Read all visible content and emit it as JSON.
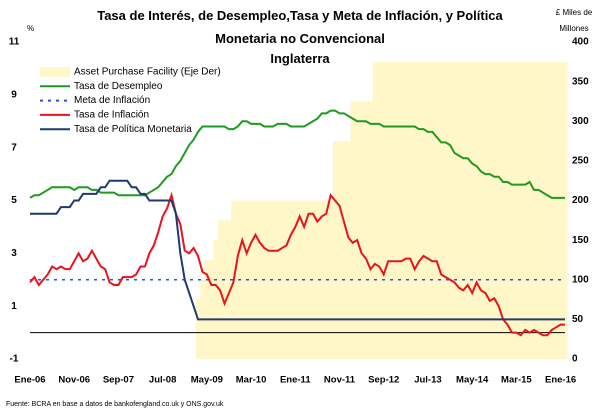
{
  "chart_data": {
    "type": "line",
    "title": "Tasa de Interés, de Desempleo,Tasa y Meta de Inflación, y Política Monetaria no Convencional",
    "subtitle": "Inglaterra",
    "ylabel": "%",
    "y2label": "£ Miles de Millones",
    "source": "Fuente: BCRA en base a datos de bankofengland.co.uk y ONS.gov.uk",
    "ylim": [
      -1,
      11
    ],
    "yticks": [
      -1,
      1,
      3,
      5,
      7,
      9,
      11
    ],
    "y2lim": [
      0,
      400
    ],
    "y2ticks": [
      0,
      50,
      100,
      150,
      200,
      250,
      300,
      350,
      400
    ],
    "categories": [
      "Ene-06",
      null,
      null,
      null,
      null,
      null,
      null,
      null,
      null,
      null,
      "Nov-06",
      null,
      null,
      null,
      null,
      null,
      null,
      null,
      null,
      null,
      "Sep-07",
      null,
      null,
      null,
      null,
      null,
      null,
      null,
      null,
      null,
      "Jul-08",
      null,
      null,
      null,
      null,
      null,
      null,
      null,
      null,
      null,
      "May-09",
      null,
      null,
      null,
      null,
      null,
      null,
      null,
      null,
      null,
      "Mar-10",
      null,
      null,
      null,
      null,
      null,
      null,
      null,
      null,
      null,
      "Ene-11",
      null,
      null,
      null,
      null,
      null,
      null,
      null,
      null,
      null,
      "Nov-11",
      null,
      null,
      null,
      null,
      null,
      null,
      null,
      null,
      null,
      "Sep-12",
      null,
      null,
      null,
      null,
      null,
      null,
      null,
      null,
      null,
      "Jul-13",
      null,
      null,
      null,
      null,
      null,
      null,
      null,
      null,
      null,
      "May-14",
      null,
      null,
      null,
      null,
      null,
      null,
      null,
      null,
      null,
      "Mar-15",
      null,
      null,
      null,
      null,
      null,
      null,
      null,
      null,
      null,
      "Ene-16",
      null
    ],
    "series": [
      {
        "name": "Asset Purchase Facility (Eje Der)",
        "type": "area",
        "axis": "y2",
        "color": "#fff7c8",
        "values": [
          0,
          0,
          0,
          0,
          0,
          0,
          0,
          0,
          0,
          0,
          0,
          0,
          0,
          0,
          0,
          0,
          0,
          0,
          0,
          0,
          0,
          0,
          0,
          0,
          0,
          0,
          0,
          0,
          0,
          0,
          0,
          0,
          0,
          0,
          0,
          0,
          0,
          0,
          75,
          100,
          125,
          125,
          150,
          175,
          175,
          175,
          200,
          200,
          200,
          200,
          200,
          200,
          200,
          200,
          200,
          200,
          200,
          200,
          200,
          200,
          200,
          200,
          200,
          200,
          200,
          200,
          200,
          200,
          200,
          275,
          275,
          275,
          275,
          325,
          325,
          325,
          325,
          325,
          375,
          375,
          375,
          375,
          375,
          375,
          375,
          375,
          375,
          375,
          375,
          375,
          375,
          375,
          375,
          375,
          375,
          375,
          375,
          375,
          375,
          375,
          375,
          375,
          375,
          375,
          375,
          375,
          375,
          375,
          375,
          375,
          375,
          375,
          375,
          375,
          375,
          375,
          375,
          375,
          375,
          375,
          375,
          375
        ]
      },
      {
        "name": "Tasa de Desempleo",
        "color": "#1e9a1e",
        "values": [
          5.1,
          5.2,
          5.2,
          5.3,
          5.4,
          5.5,
          5.5,
          5.5,
          5.5,
          5.5,
          5.4,
          5.5,
          5.5,
          5.5,
          5.4,
          5.4,
          5.3,
          5.3,
          5.3,
          5.3,
          5.2,
          5.2,
          5.2,
          5.2,
          5.2,
          5.2,
          5.2,
          5.3,
          5.4,
          5.5,
          5.7,
          5.9,
          6.0,
          6.3,
          6.5,
          6.8,
          7.1,
          7.3,
          7.6,
          7.8,
          7.8,
          7.8,
          7.8,
          7.8,
          7.8,
          7.7,
          7.7,
          7.8,
          8.0,
          8.0,
          7.9,
          7.9,
          7.9,
          7.8,
          7.8,
          7.8,
          7.9,
          7.9,
          7.9,
          7.8,
          7.8,
          7.8,
          7.8,
          7.9,
          8.0,
          8.1,
          8.3,
          8.3,
          8.4,
          8.4,
          8.3,
          8.3,
          8.2,
          8.1,
          8.0,
          8.0,
          8.0,
          7.9,
          7.9,
          7.9,
          7.8,
          7.8,
          7.8,
          7.8,
          7.8,
          7.8,
          7.8,
          7.8,
          7.7,
          7.7,
          7.6,
          7.6,
          7.4,
          7.2,
          7.2,
          7.1,
          6.8,
          6.7,
          6.6,
          6.6,
          6.4,
          6.3,
          6.1,
          6.0,
          6.0,
          5.9,
          5.9,
          5.7,
          5.7,
          5.6,
          5.6,
          5.6,
          5.6,
          5.7,
          5.4,
          5.4,
          5.3,
          5.2,
          5.1,
          5.1,
          5.1,
          5.1
        ]
      },
      {
        "name": "Meta de Inflación",
        "style": "dashed",
        "color": "#3050d8",
        "values": [
          2,
          2,
          2,
          2,
          2,
          2,
          2,
          2,
          2,
          2,
          2,
          2,
          2,
          2,
          2,
          2,
          2,
          2,
          2,
          2,
          2,
          2,
          2,
          2,
          2,
          2,
          2,
          2,
          2,
          2,
          2,
          2,
          2,
          2,
          2,
          2,
          2,
          2,
          2,
          2,
          2,
          2,
          2,
          2,
          2,
          2,
          2,
          2,
          2,
          2,
          2,
          2,
          2,
          2,
          2,
          2,
          2,
          2,
          2,
          2,
          2,
          2,
          2,
          2,
          2,
          2,
          2,
          2,
          2,
          2,
          2,
          2,
          2,
          2,
          2,
          2,
          2,
          2,
          2,
          2,
          2,
          2,
          2,
          2,
          2,
          2,
          2,
          2,
          2,
          2,
          2,
          2,
          2,
          2,
          2,
          2,
          2,
          2,
          2,
          2,
          2,
          2,
          2,
          2,
          2,
          2,
          2,
          2,
          2,
          2,
          2,
          2,
          2,
          2,
          2,
          2,
          2,
          2,
          2,
          2,
          2,
          2
        ]
      },
      {
        "name": "Tasa de Inflación",
        "color": "#e8141c",
        "values": [
          1.9,
          2.1,
          1.8,
          2.0,
          2.2,
          2.5,
          2.4,
          2.5,
          2.4,
          2.4,
          2.7,
          3.0,
          2.7,
          2.8,
          3.1,
          2.8,
          2.5,
          2.4,
          1.9,
          1.8,
          1.8,
          2.1,
          2.1,
          2.1,
          2.2,
          2.5,
          2.5,
          3.0,
          3.3,
          3.8,
          4.4,
          4.7,
          5.2,
          4.5,
          4.1,
          3.1,
          3.0,
          3.2,
          2.9,
          2.3,
          2.2,
          1.8,
          1.8,
          1.6,
          1.1,
          1.5,
          1.9,
          2.9,
          3.5,
          3.0,
          3.4,
          3.7,
          3.4,
          3.2,
          3.1,
          3.1,
          3.1,
          3.2,
          3.3,
          3.7,
          4.0,
          4.4,
          4.0,
          4.5,
          4.5,
          4.2,
          4.4,
          4.5,
          5.2,
          5.0,
          4.8,
          4.2,
          3.6,
          3.4,
          3.5,
          3.0,
          2.8,
          2.4,
          2.6,
          2.5,
          2.2,
          2.7,
          2.7,
          2.7,
          2.7,
          2.8,
          2.8,
          2.4,
          2.7,
          2.9,
          2.8,
          2.7,
          2.7,
          2.2,
          2.1,
          2.0,
          1.9,
          1.7,
          1.6,
          1.8,
          1.5,
          1.9,
          1.6,
          1.5,
          1.2,
          1.3,
          1.0,
          0.5,
          0.3,
          0.0,
          0.0,
          -0.1,
          0.1,
          0.0,
          0.1,
          0.0,
          -0.1,
          -0.1,
          0.1,
          0.2,
          0.3,
          0.3
        ]
      },
      {
        "name": "Tasa de Política Monetaria",
        "color": "#1f3a6e",
        "values": [
          4.5,
          4.5,
          4.5,
          4.5,
          4.5,
          4.5,
          4.5,
          4.75,
          4.75,
          4.75,
          5.0,
          5.0,
          5.25,
          5.25,
          5.25,
          5.25,
          5.5,
          5.5,
          5.75,
          5.75,
          5.75,
          5.75,
          5.75,
          5.5,
          5.5,
          5.25,
          5.25,
          5.0,
          5.0,
          5.0,
          5.0,
          5.0,
          5.0,
          4.5,
          3.0,
          2.0,
          1.5,
          1.0,
          0.5,
          0.5,
          0.5,
          0.5,
          0.5,
          0.5,
          0.5,
          0.5,
          0.5,
          0.5,
          0.5,
          0.5,
          0.5,
          0.5,
          0.5,
          0.5,
          0.5,
          0.5,
          0.5,
          0.5,
          0.5,
          0.5,
          0.5,
          0.5,
          0.5,
          0.5,
          0.5,
          0.5,
          0.5,
          0.5,
          0.5,
          0.5,
          0.5,
          0.5,
          0.5,
          0.5,
          0.5,
          0.5,
          0.5,
          0.5,
          0.5,
          0.5,
          0.5,
          0.5,
          0.5,
          0.5,
          0.5,
          0.5,
          0.5,
          0.5,
          0.5,
          0.5,
          0.5,
          0.5,
          0.5,
          0.5,
          0.5,
          0.5,
          0.5,
          0.5,
          0.5,
          0.5,
          0.5,
          0.5,
          0.5,
          0.5,
          0.5,
          0.5,
          0.5,
          0.5,
          0.5,
          0.5,
          0.5,
          0.5,
          0.5,
          0.5,
          0.5,
          0.5,
          0.5,
          0.5,
          0.5,
          0.5,
          0.5,
          0.5
        ]
      }
    ]
  }
}
